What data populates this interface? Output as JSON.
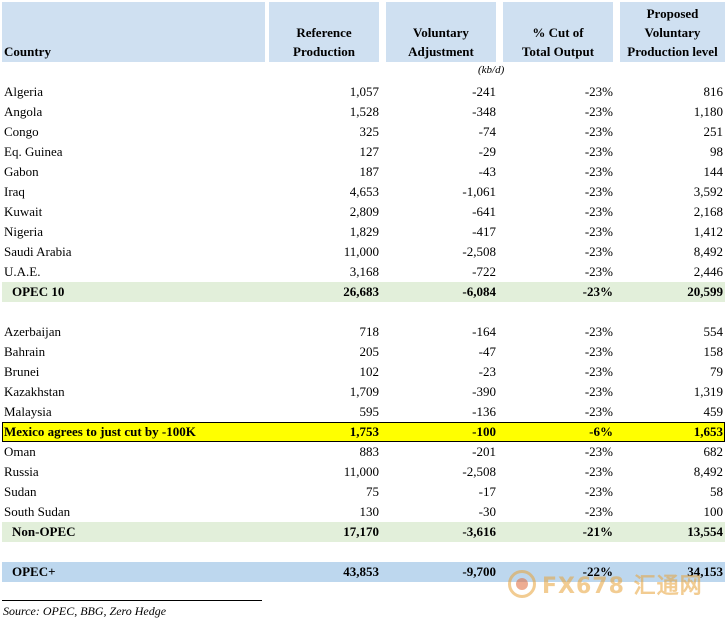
{
  "header": {
    "country": "Country",
    "reference": [
      "Reference",
      "Production"
    ],
    "adjustment": [
      "Voluntary",
      "Adjustment"
    ],
    "cut": [
      "% Cut of",
      "Total Output"
    ],
    "proposed": [
      "Proposed",
      "Voluntary",
      "Production level"
    ]
  },
  "units": "(kb/d)",
  "rows": [
    {
      "type": "data",
      "name": "Algeria",
      "ref": "1,057",
      "adj": "-241",
      "cut": "-23%",
      "prop": "816"
    },
    {
      "type": "data",
      "name": "Angola",
      "ref": "1,528",
      "adj": "-348",
      "cut": "-23%",
      "prop": "1,180"
    },
    {
      "type": "data",
      "name": "Congo",
      "ref": "325",
      "adj": "-74",
      "cut": "-23%",
      "prop": "251"
    },
    {
      "type": "data",
      "name": "Eq. Guinea",
      "ref": "127",
      "adj": "-29",
      "cut": "-23%",
      "prop": "98"
    },
    {
      "type": "data",
      "name": "Gabon",
      "ref": "187",
      "adj": "-43",
      "cut": "-23%",
      "prop": "144"
    },
    {
      "type": "data",
      "name": "Iraq",
      "ref": "4,653",
      "adj": "-1,061",
      "cut": "-23%",
      "prop": "3,592"
    },
    {
      "type": "data",
      "name": "Kuwait",
      "ref": "2,809",
      "adj": "-641",
      "cut": "-23%",
      "prop": "2,168"
    },
    {
      "type": "data",
      "name": "Nigeria",
      "ref": "1,829",
      "adj": "-417",
      "cut": "-23%",
      "prop": "1,412"
    },
    {
      "type": "data",
      "name": "Saudi Arabia",
      "ref": "11,000",
      "adj": "-2,508",
      "cut": "-23%",
      "prop": "8,492"
    },
    {
      "type": "data",
      "name": "U.A.E.",
      "ref": "3,168",
      "adj": "-722",
      "cut": "-23%",
      "prop": "2,446"
    },
    {
      "type": "subtotal",
      "name": "OPEC 10",
      "ref": "26,683",
      "adj": "-6,084",
      "cut": "-23%",
      "prop": "20,599"
    },
    {
      "type": "spacer"
    },
    {
      "type": "data",
      "name": "Azerbaijan",
      "ref": "718",
      "adj": "-164",
      "cut": "-23%",
      "prop": "554"
    },
    {
      "type": "data",
      "name": "Bahrain",
      "ref": "205",
      "adj": "-47",
      "cut": "-23%",
      "prop": "158"
    },
    {
      "type": "data",
      "name": "Brunei",
      "ref": "102",
      "adj": "-23",
      "cut": "-23%",
      "prop": "79"
    },
    {
      "type": "data",
      "name": "Kazakhstan",
      "ref": "1,709",
      "adj": "-390",
      "cut": "-23%",
      "prop": "1,319"
    },
    {
      "type": "data",
      "name": "Malaysia",
      "ref": "595",
      "adj": "-136",
      "cut": "-23%",
      "prop": "459"
    },
    {
      "type": "highlight",
      "name": "Mexico agrees to just cut by -100K",
      "ref": "1,753",
      "adj": "-100",
      "cut": "-6%",
      "prop": "1,653"
    },
    {
      "type": "data",
      "name": "Oman",
      "ref": "883",
      "adj": "-201",
      "cut": "-23%",
      "prop": "682"
    },
    {
      "type": "data",
      "name": "Russia",
      "ref": "11,000",
      "adj": "-2,508",
      "cut": "-23%",
      "prop": "8,492"
    },
    {
      "type": "data",
      "name": "Sudan",
      "ref": "75",
      "adj": "-17",
      "cut": "-23%",
      "prop": "58"
    },
    {
      "type": "data",
      "name": "South Sudan",
      "ref": "130",
      "adj": "-30",
      "cut": "-23%",
      "prop": "100"
    },
    {
      "type": "subtotal",
      "name": "Non-OPEC",
      "ref": "17,170",
      "adj": "-3,616",
      "cut": "-21%",
      "prop": "13,554"
    },
    {
      "type": "spacer"
    },
    {
      "type": "total",
      "name": "OPEC+",
      "ref": "43,853",
      "adj": "-9,700",
      "cut": "-22%",
      "prop": "34,153"
    }
  ],
  "source": "Source: OPEC, BBG, Zero Hedge",
  "watermark": {
    "text": "FX678 汇通网",
    "icon": "fx678-logo-icon",
    "color": "#e8a33a"
  },
  "colors": {
    "header": "#cfe0f1",
    "subtotal": "#e2efda",
    "highlight": "#ffff00",
    "total": "#bdd7ee"
  }
}
